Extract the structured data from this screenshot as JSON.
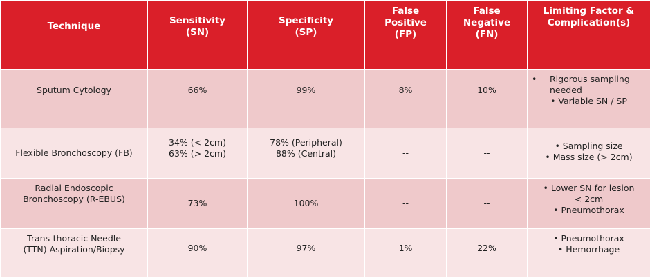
{
  "table": {
    "headers": {
      "technique": [
        "Technique"
      ],
      "sensitivity": [
        "Sensitivity",
        "(SN)"
      ],
      "specificity": [
        "Specificity",
        "(SP)"
      ],
      "false_positive": [
        "False",
        "Positive",
        "(FP)"
      ],
      "false_negative": [
        "False",
        "Negative",
        "(FN)"
      ],
      "limiting": [
        "Limiting Factor &",
        "Complication(s)"
      ]
    },
    "rows": [
      {
        "technique": [
          "Sputum Cytology"
        ],
        "sensitivity": [
          "66%"
        ],
        "specificity": [
          "99%"
        ],
        "false_positive": "8%",
        "false_negative": "10%",
        "limiting_bullet": "•",
        "limiting": [
          "Rigorous sampling",
          "needed",
          "• Variable SN / SP"
        ]
      },
      {
        "technique": [
          "Flexible Bronchoscopy (FB)"
        ],
        "sensitivity": [
          "34% (< 2cm)",
          "63% (> 2cm)"
        ],
        "specificity": [
          "78% (Peripheral)",
          "88% (Central)"
        ],
        "false_positive": "--",
        "false_negative": "--",
        "limiting": [
          "• Sampling size",
          "• Mass size (> 2cm)"
        ]
      },
      {
        "technique": [
          "Radial Endoscopic",
          "Bronchoscopy (R-EBUS)"
        ],
        "sensitivity": [
          "73%"
        ],
        "specificity": [
          "100%"
        ],
        "false_positive": "--",
        "false_negative": "--",
        "limiting": [
          "• Lower SN for lesion",
          "< 2cm",
          "• Pneumothorax"
        ]
      },
      {
        "technique": [
          "Trans-thoracic Needle",
          "(TTN) Aspiration/Biopsy"
        ],
        "sensitivity": [
          "90%"
        ],
        "specificity": [
          "97%"
        ],
        "false_positive": "1%",
        "false_negative": "22%",
        "limiting": [
          "• Pneumothorax",
          "• Hemorrhage"
        ]
      }
    ]
  },
  "colors": {
    "header_bg": "#da1f29",
    "row_dark": "#efc9cb",
    "row_light": "#f8e4e5"
  }
}
